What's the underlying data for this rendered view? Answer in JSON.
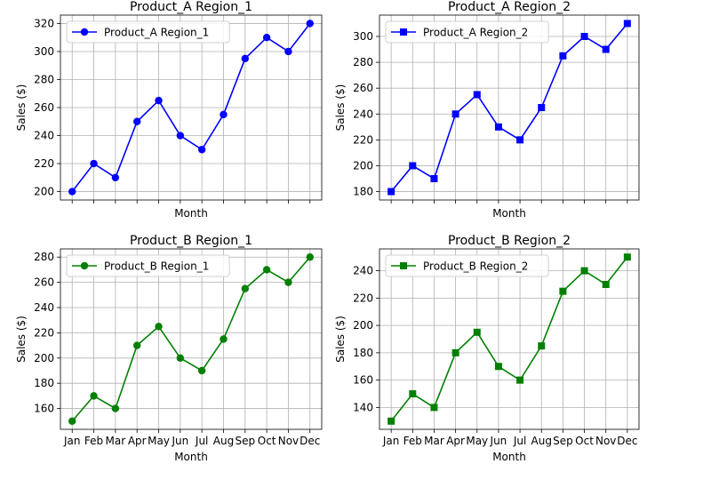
{
  "chart_data": [
    {
      "type": "line",
      "title": "Product_A Region_1",
      "xlabel": "Month",
      "ylabel": "Sales ($)",
      "categories": [
        "Jan",
        "Feb",
        "Mar",
        "Apr",
        "May",
        "Jun",
        "Jul",
        "Aug",
        "Sep",
        "Oct",
        "Nov",
        "Dec"
      ],
      "show_xticklabels": false,
      "series": [
        {
          "name": "Product_A Region_1",
          "values": [
            200,
            220,
            210,
            250,
            265,
            240,
            230,
            255,
            295,
            310,
            300,
            320
          ],
          "color": "#0000ff",
          "marker": "circle"
        }
      ],
      "ylim": [
        194,
        326
      ],
      "yticks": [
        200,
        220,
        240,
        260,
        280,
        300,
        320
      ],
      "grid": true,
      "legend": "top-left"
    },
    {
      "type": "line",
      "title": "Product_A Region_2",
      "xlabel": "Month",
      "ylabel": "Sales ($)",
      "categories": [
        "Jan",
        "Feb",
        "Mar",
        "Apr",
        "May",
        "Jun",
        "Jul",
        "Aug",
        "Sep",
        "Oct",
        "Nov",
        "Dec"
      ],
      "show_xticklabels": false,
      "series": [
        {
          "name": "Product_A Region_2",
          "values": [
            180,
            200,
            190,
            240,
            255,
            230,
            220,
            245,
            285,
            300,
            290,
            310
          ],
          "color": "#0000ff",
          "marker": "square"
        }
      ],
      "ylim": [
        173.5,
        316.5
      ],
      "yticks": [
        180,
        200,
        220,
        240,
        260,
        280,
        300
      ],
      "grid": true,
      "legend": "top-left"
    },
    {
      "type": "line",
      "title": "Product_B Region_1",
      "xlabel": "Month",
      "ylabel": "Sales ($)",
      "categories": [
        "Jan",
        "Feb",
        "Mar",
        "Apr",
        "May",
        "Jun",
        "Jul",
        "Aug",
        "Sep",
        "Oct",
        "Nov",
        "Dec"
      ],
      "show_xticklabels": true,
      "series": [
        {
          "name": "Product_B Region_1",
          "values": [
            150,
            170,
            160,
            210,
            225,
            200,
            190,
            215,
            255,
            270,
            260,
            280
          ],
          "color": "#008000",
          "marker": "circle"
        }
      ],
      "ylim": [
        143.5,
        286.5
      ],
      "yticks": [
        160,
        180,
        200,
        220,
        240,
        260,
        280
      ],
      "grid": true,
      "legend": "top-left"
    },
    {
      "type": "line",
      "title": "Product_B Region_2",
      "xlabel": "Month",
      "ylabel": "Sales ($)",
      "categories": [
        "Jan",
        "Feb",
        "Mar",
        "Apr",
        "May",
        "Jun",
        "Jul",
        "Aug",
        "Sep",
        "Oct",
        "Nov",
        "Dec"
      ],
      "show_xticklabels": true,
      "series": [
        {
          "name": "Product_B Region_2",
          "values": [
            130,
            150,
            140,
            180,
            195,
            170,
            160,
            185,
            225,
            240,
            230,
            250
          ],
          "color": "#008000",
          "marker": "square"
        }
      ],
      "ylim": [
        124,
        256
      ],
      "yticks": [
        140,
        160,
        180,
        200,
        220,
        240
      ],
      "grid": true,
      "legend": "top-left"
    }
  ]
}
